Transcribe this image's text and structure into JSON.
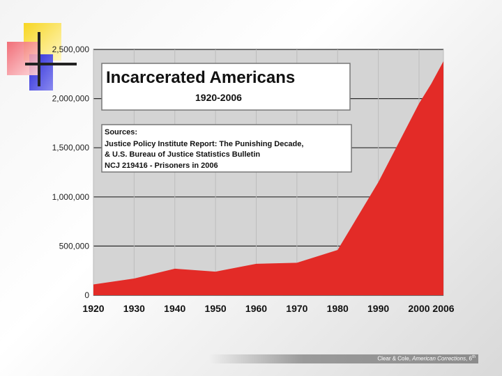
{
  "chart_data": {
    "type": "area",
    "title": "Incarcerated Americans",
    "subtitle": "1920-2006",
    "sources": [
      "Sources:",
      "Justice Policy Institute Report: The Punishing Decade,",
      "& U.S. Bureau of Justice Statistics Bulletin",
      "NCJ 219416 - Prisoners in 2006"
    ],
    "x_ticks": [
      "1920",
      "1930",
      "1940",
      "1950",
      "1960",
      "1970",
      "1980",
      "1990",
      "2000",
      "2006"
    ],
    "y_ticks": [
      "0",
      "500,000",
      "1,000,000",
      "1,500,000",
      "2,000,000",
      "2,500,000"
    ],
    "ylim": [
      0,
      2500000
    ],
    "grid": true,
    "series": [
      {
        "color": "#e32b27",
        "points": [
          {
            "x": "1920",
            "y": 110000
          },
          {
            "x": "1930",
            "y": 170000
          },
          {
            "x": "1940",
            "y": 270000
          },
          {
            "x": "1950",
            "y": 240000
          },
          {
            "x": "1960",
            "y": 320000
          },
          {
            "x": "1970",
            "y": 330000
          },
          {
            "x": "1980",
            "y": 460000
          },
          {
            "x": "1990",
            "y": 1150000
          },
          {
            "x": "2000",
            "y": 1950000
          },
          {
            "x": "2003",
            "y": 2150000
          },
          {
            "x": "2006",
            "y": 2380000
          }
        ]
      }
    ]
  },
  "footer": {
    "authors": "Clear & Cole, ",
    "book": "American Corrections",
    "edition": ", 6",
    "edition_sup": "th"
  },
  "colors": {
    "area": "#e32b27",
    "deco_yellow": "#f7d622",
    "deco_blue": "#3b3be0",
    "deco_red": "#f0606a"
  }
}
